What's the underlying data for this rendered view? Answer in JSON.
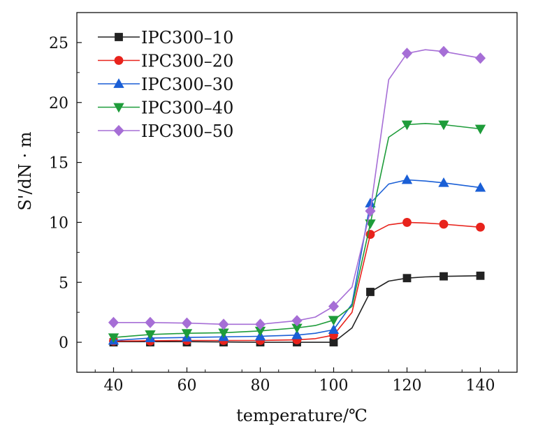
{
  "chart_data": {
    "type": "line",
    "xlabel": "temperature/℃",
    "ylabel": "S'/dN · m",
    "xlim": [
      30,
      150
    ],
    "ylim": [
      -2.5,
      27.5
    ],
    "xticks": [
      40,
      60,
      80,
      100,
      120,
      140
    ],
    "yticks": [
      0,
      5,
      10,
      15,
      20,
      25
    ],
    "grid": false,
    "legend_position": "top-left",
    "series": [
      {
        "name": "IPC300–10",
        "color": "#222222",
        "marker": "square",
        "markers": [
          [
            40,
            0
          ],
          [
            50,
            0
          ],
          [
            60,
            0
          ],
          [
            70,
            0
          ],
          [
            80,
            0
          ],
          [
            90,
            0
          ],
          [
            100,
            0
          ],
          [
            110,
            4.2
          ],
          [
            120,
            5.35
          ],
          [
            130,
            5.5
          ],
          [
            140,
            5.55
          ]
        ],
        "line": [
          [
            40,
            0.05
          ],
          [
            60,
            0.05
          ],
          [
            80,
            0
          ],
          [
            90,
            0
          ],
          [
            100,
            0
          ],
          [
            105,
            1.2
          ],
          [
            110,
            4.2
          ],
          [
            115,
            5.1
          ],
          [
            120,
            5.35
          ],
          [
            125,
            5.45
          ],
          [
            130,
            5.5
          ],
          [
            140,
            5.55
          ]
        ]
      },
      {
        "name": "IPC300–20",
        "color": "#e8231c",
        "marker": "circle",
        "markers": [
          [
            40,
            0.1
          ],
          [
            50,
            0.1
          ],
          [
            60,
            0.15
          ],
          [
            70,
            0.15
          ],
          [
            80,
            0.15
          ],
          [
            90,
            0.2
          ],
          [
            100,
            0.6
          ],
          [
            110,
            9.0
          ],
          [
            120,
            10.0
          ],
          [
            130,
            9.85
          ],
          [
            140,
            9.6
          ]
        ],
        "line": [
          [
            40,
            0.1
          ],
          [
            60,
            0.15
          ],
          [
            80,
            0.15
          ],
          [
            90,
            0.2
          ],
          [
            95,
            0.3
          ],
          [
            100,
            0.6
          ],
          [
            105,
            2.5
          ],
          [
            110,
            9.0
          ],
          [
            115,
            9.8
          ],
          [
            120,
            10.0
          ],
          [
            125,
            9.95
          ],
          [
            130,
            9.85
          ],
          [
            140,
            9.6
          ]
        ]
      },
      {
        "name": "IPC300–30",
        "color": "#1a5fd6",
        "marker": "triangle-up",
        "markers": [
          [
            40,
            0.15
          ],
          [
            50,
            0.35
          ],
          [
            60,
            0.4
          ],
          [
            70,
            0.45
          ],
          [
            80,
            0.5
          ],
          [
            90,
            0.6
          ],
          [
            100,
            1.05
          ],
          [
            110,
            11.6
          ],
          [
            120,
            13.55
          ],
          [
            130,
            13.3
          ],
          [
            140,
            12.9
          ]
        ],
        "line": [
          [
            40,
            0.15
          ],
          [
            50,
            0.35
          ],
          [
            60,
            0.4
          ],
          [
            80,
            0.5
          ],
          [
            90,
            0.6
          ],
          [
            95,
            0.75
          ],
          [
            100,
            1.05
          ],
          [
            105,
            3.2
          ],
          [
            110,
            11.6
          ],
          [
            115,
            13.2
          ],
          [
            120,
            13.55
          ],
          [
            125,
            13.45
          ],
          [
            130,
            13.3
          ],
          [
            140,
            12.9
          ]
        ]
      },
      {
        "name": "IPC300–40",
        "color": "#1e9c3a",
        "marker": "triangle-down",
        "markers": [
          [
            40,
            0.4
          ],
          [
            50,
            0.65
          ],
          [
            60,
            0.75
          ],
          [
            70,
            0.8
          ],
          [
            80,
            0.95
          ],
          [
            90,
            1.2
          ],
          [
            100,
            1.85
          ],
          [
            110,
            9.9
          ],
          [
            120,
            18.15
          ],
          [
            130,
            18.15
          ],
          [
            140,
            17.8
          ]
        ],
        "line": [
          [
            40,
            0.4
          ],
          [
            50,
            0.65
          ],
          [
            60,
            0.75
          ],
          [
            70,
            0.8
          ],
          [
            80,
            0.95
          ],
          [
            90,
            1.2
          ],
          [
            95,
            1.4
          ],
          [
            100,
            1.85
          ],
          [
            105,
            3.0
          ],
          [
            110,
            9.9
          ],
          [
            115,
            17.1
          ],
          [
            120,
            18.15
          ],
          [
            125,
            18.25
          ],
          [
            130,
            18.15
          ],
          [
            140,
            17.8
          ]
        ]
      },
      {
        "name": "IPC300–50",
        "color": "#a66ed6",
        "marker": "diamond",
        "markers": [
          [
            40,
            1.65
          ],
          [
            50,
            1.65
          ],
          [
            60,
            1.6
          ],
          [
            70,
            1.5
          ],
          [
            80,
            1.5
          ],
          [
            90,
            1.8
          ],
          [
            100,
            3.0
          ],
          [
            110,
            10.95
          ],
          [
            120,
            24.1
          ],
          [
            130,
            24.25
          ],
          [
            140,
            23.7
          ]
        ],
        "line": [
          [
            40,
            1.65
          ],
          [
            50,
            1.65
          ],
          [
            60,
            1.6
          ],
          [
            70,
            1.5
          ],
          [
            80,
            1.5
          ],
          [
            90,
            1.8
          ],
          [
            95,
            2.1
          ],
          [
            100,
            3.0
          ],
          [
            105,
            4.6
          ],
          [
            110,
            10.95
          ],
          [
            115,
            21.9
          ],
          [
            120,
            24.1
          ],
          [
            125,
            24.4
          ],
          [
            130,
            24.25
          ],
          [
            140,
            23.7
          ]
        ]
      }
    ]
  }
}
